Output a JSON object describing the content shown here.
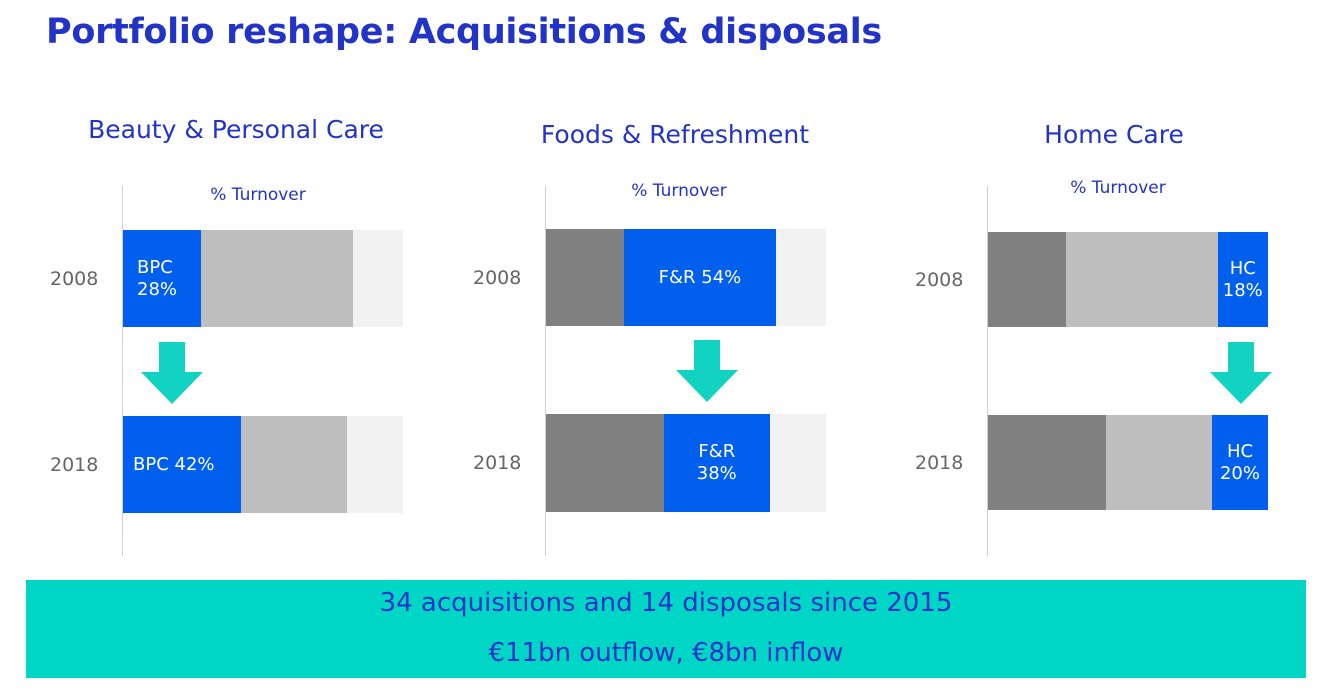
{
  "title": "Portfolio reshape: Acquisitions & disposals",
  "colors": {
    "title": "#2233c8",
    "highlight": "#005fec",
    "other_dark": "#808080",
    "other_light": "#bebebe",
    "remainder": "#f2f2f2",
    "arrow": "#12d3c1",
    "banner": "#00d6c6"
  },
  "chart_data": [
    {
      "type": "bar",
      "title": "Beauty & Personal Care",
      "xlabel": "% Turnover",
      "categories": [
        "2008",
        "2018"
      ],
      "series": [
        {
          "name": "Beauty & Personal Care",
          "values": [
            28,
            42
          ],
          "labels": [
            "BPC\n28%",
            "BPC 42%"
          ]
        }
      ],
      "arrow_icon": "arrow-down-icon"
    },
    {
      "type": "bar",
      "title": "Foods & Refreshment",
      "xlabel": "% Turnover",
      "categories": [
        "2008",
        "2018"
      ],
      "series": [
        {
          "name": "Foods & Refreshment",
          "values": [
            54,
            38
          ],
          "labels": [
            "F&R 54%",
            "F&R\n38%"
          ]
        }
      ],
      "arrow_icon": "arrow-down-icon"
    },
    {
      "type": "bar",
      "title": "Home Care",
      "xlabel": "% Turnover",
      "categories": [
        "2008",
        "2018"
      ],
      "series": [
        {
          "name": "Home Care",
          "values": [
            18,
            20
          ],
          "labels": [
            "HC\n18%",
            "HC\n20%"
          ]
        }
      ],
      "arrow_icon": "arrow-down-icon"
    }
  ],
  "footer": {
    "line1": "34 acquisitions and 14 disposals since 2015",
    "line2": "€11bn outflow, €8bn inflow"
  }
}
